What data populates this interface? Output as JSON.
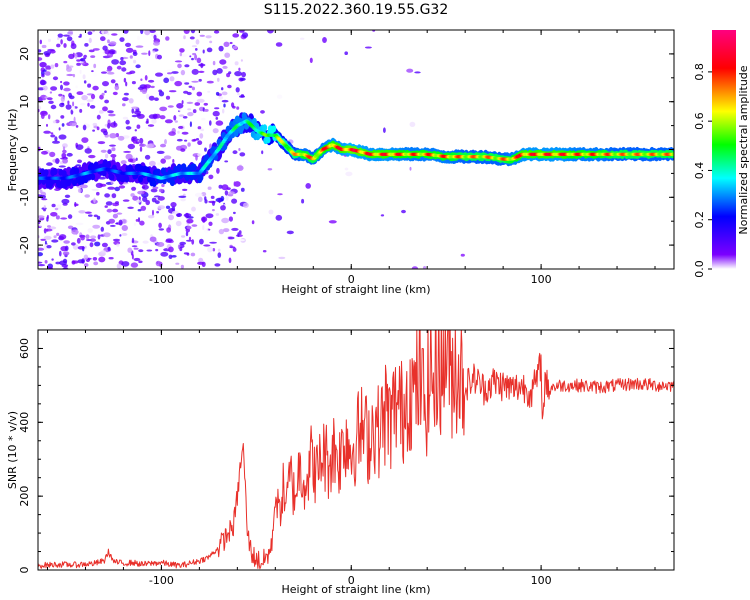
{
  "title": "S115.2022.360.19.55.G32",
  "chart_data": [
    {
      "type": "heatmap",
      "xlabel": "Height of straight line (km)",
      "ylabel": "Frequency (Hz)",
      "xlim": [
        -165,
        170
      ],
      "ylim": [
        -25,
        25
      ],
      "xticks": [
        -100,
        0,
        100
      ],
      "yticks": [
        -20,
        -10,
        0,
        10,
        20
      ],
      "colorbar": {
        "label": "Normalized spectral amplitude",
        "range": [
          0.0,
          0.97
        ],
        "ticks": [
          0.0,
          0.2,
          0.4,
          0.6,
          0.8
        ],
        "tick_labels": [
          "0.0",
          "0.2",
          "0.4",
          "0.6",
          "0.8"
        ],
        "colormap": [
          "#ffffff",
          "#7b00ff",
          "#0000ff",
          "#00ffff",
          "#00ff00",
          "#ffff00",
          "#ff0000",
          "#ff007f"
        ]
      },
      "ridge": {
        "x": [
          -160,
          -150,
          -140,
          -130,
          -120,
          -110,
          -100,
          -90,
          -80,
          -70,
          -65,
          -60,
          -55,
          -50,
          -45,
          -40,
          -35,
          -30,
          -25,
          -20,
          -15,
          -10,
          -5,
          0,
          10,
          20,
          30,
          40,
          50,
          60,
          70,
          80,
          85,
          90,
          100,
          110,
          120,
          130,
          140,
          150,
          160,
          170
        ],
        "y": [
          -6,
          -6,
          -5,
          -4,
          -5,
          -5,
          -6,
          -5,
          -5,
          0,
          3,
          5,
          6,
          4,
          3,
          3,
          1,
          -1,
          -1,
          -2,
          0,
          1,
          0,
          0,
          -1,
          -1,
          -1,
          -1,
          -1.5,
          -1.5,
          -1.5,
          -2,
          -2,
          -1,
          -1,
          -1,
          -1,
          -1,
          -1,
          -1,
          -1,
          -1
        ],
        "amplitude": [
          0.3,
          0.3,
          0.35,
          0.3,
          0.3,
          0.35,
          0.4,
          0.4,
          0.4,
          0.45,
          0.45,
          0.5,
          0.5,
          0.55,
          0.6,
          0.65,
          0.7,
          0.75,
          0.85,
          0.8,
          0.85,
          0.9,
          0.9,
          0.95,
          0.9,
          0.9,
          0.85,
          0.85,
          0.85,
          0.8,
          0.8,
          0.8,
          0.85,
          0.9,
          0.9,
          0.9,
          0.85,
          0.85,
          0.8,
          0.8,
          0.8,
          0.8
        ]
      }
    },
    {
      "type": "line",
      "xlabel": "Height of straight line (km)",
      "ylabel": "SNR (10 * v/v)",
      "xlim": [
        -165,
        170
      ],
      "ylim": [
        0,
        650
      ],
      "xticks": [
        -100,
        0,
        100
      ],
      "yticks": [
        0,
        200,
        400,
        600
      ],
      "color": "#e8302a",
      "series": [
        {
          "x": [
            -165,
            -155,
            -145,
            -135,
            -130,
            -128,
            -125,
            -120,
            -115,
            -110,
            -105,
            -100,
            -95,
            -90,
            -85,
            -80,
            -75,
            -70,
            -66,
            -62,
            -60,
            -58,
            -57,
            -56,
            -55,
            -54,
            -52,
            -50,
            -47,
            -44,
            -42,
            -40,
            -38,
            -36,
            -34,
            -32,
            -30,
            -27,
            -24,
            -21,
            -18,
            -15,
            -12,
            -9,
            -6,
            -3,
            0,
            3,
            6,
            9,
            12,
            15,
            18,
            21,
            24,
            27,
            30,
            33,
            36,
            39,
            42,
            44,
            46,
            48,
            50,
            52,
            55,
            60,
            65,
            70,
            75,
            80,
            85,
            90,
            95,
            98,
            100,
            101,
            102,
            103,
            105,
            110,
            120,
            130,
            140,
            150,
            160,
            170
          ],
          "y": [
            12,
            15,
            14,
            18,
            25,
            50,
            22,
            18,
            20,
            15,
            18,
            20,
            15,
            12,
            18,
            25,
            35,
            60,
            90,
            120,
            200,
            300,
            335,
            250,
            120,
            80,
            40,
            30,
            20,
            40,
            60,
            200,
            150,
            220,
            180,
            260,
            200,
            280,
            240,
            300,
            260,
            320,
            290,
            330,
            300,
            370,
            320,
            360,
            380,
            350,
            400,
            370,
            430,
            400,
            460,
            420,
            500,
            470,
            520,
            440,
            560,
            480,
            620,
            500,
            640,
            520,
            560,
            500,
            520,
            490,
            510,
            500,
            490,
            500,
            480,
            520,
            560,
            390,
            520,
            500,
            495,
            500,
            500,
            495,
            500,
            505,
            500,
            500
          ]
        }
      ]
    }
  ]
}
